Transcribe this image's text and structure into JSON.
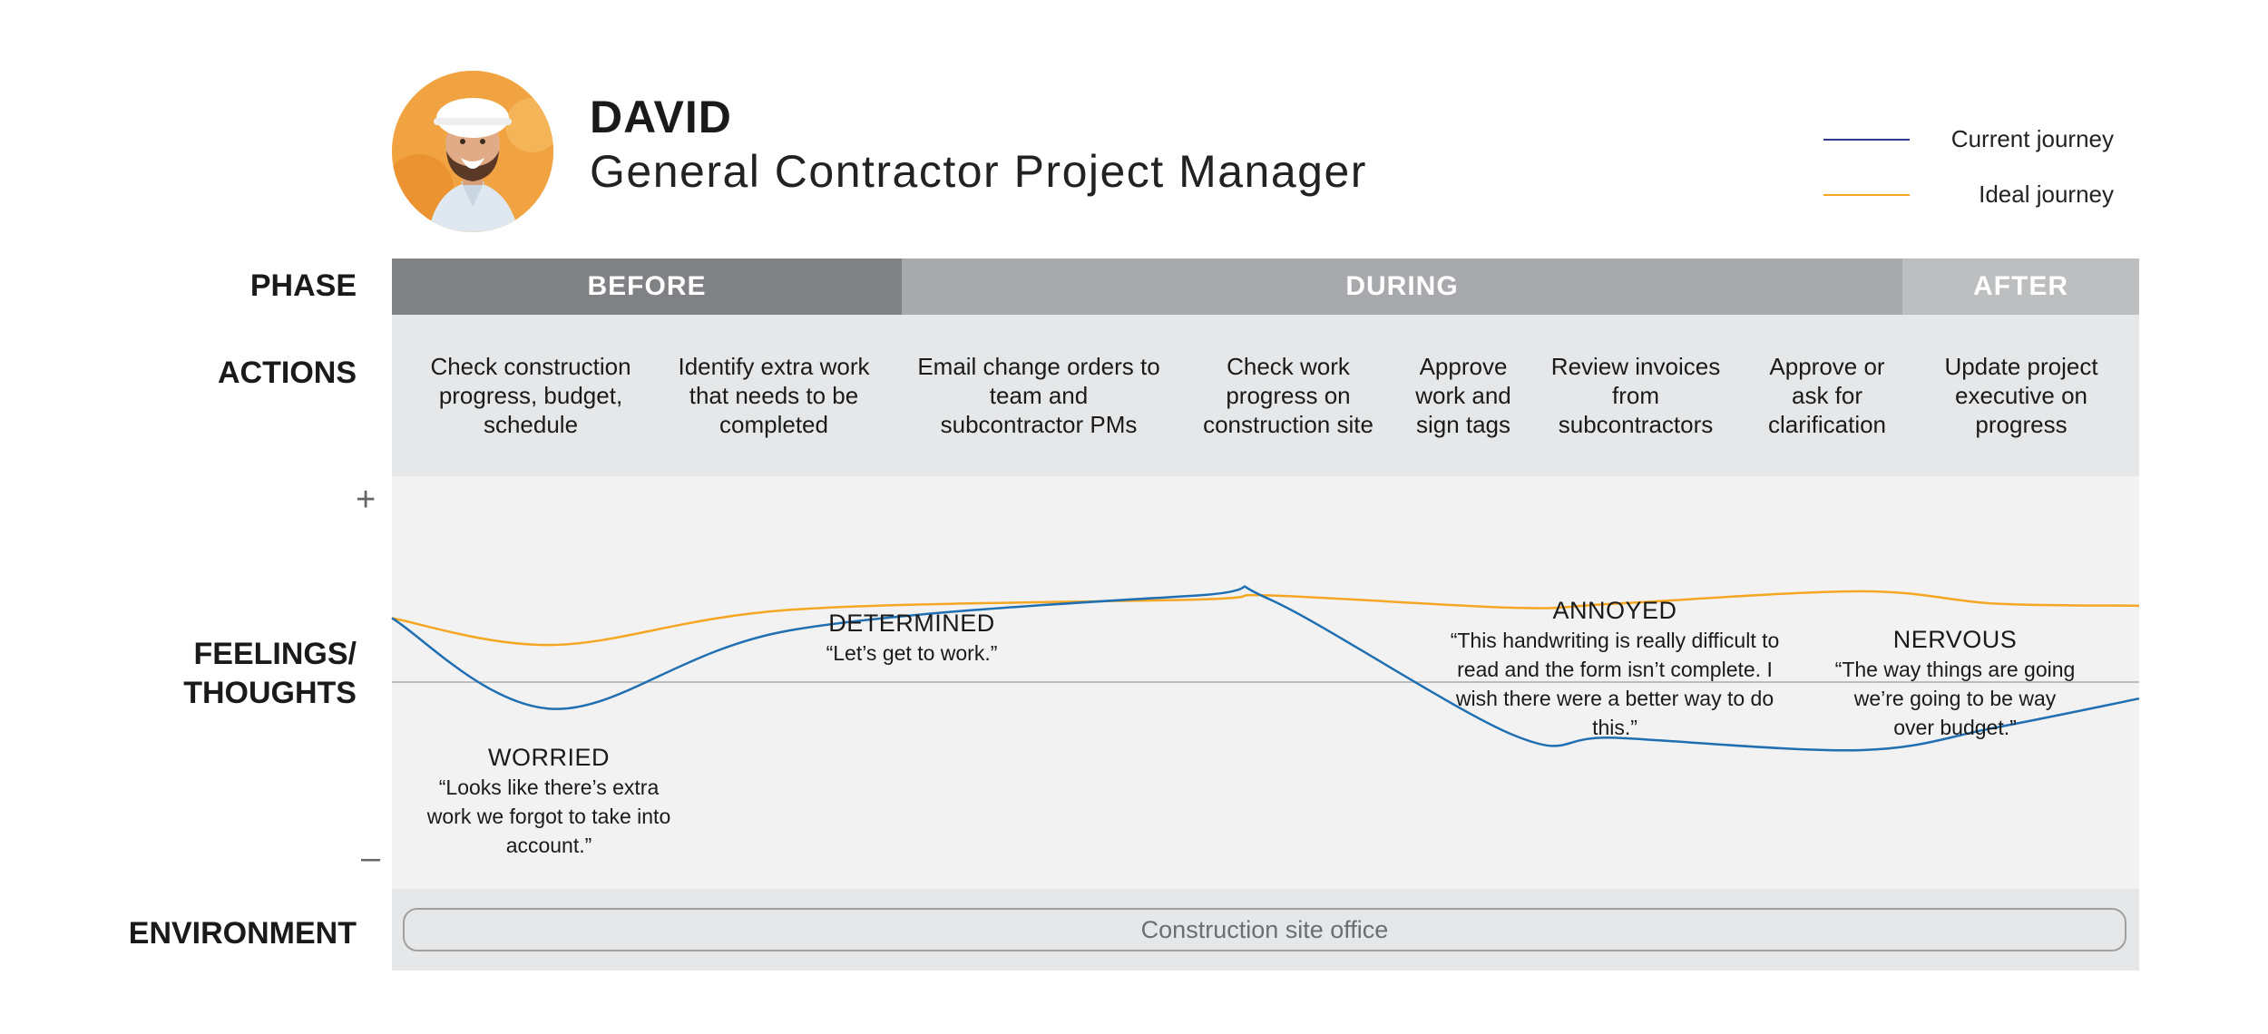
{
  "persona": {
    "name": "DAVID",
    "role": "General Contractor Project Manager",
    "avatar_icon": "construction-worker-photo"
  },
  "legend": [
    {
      "label": "Current journey",
      "color": "#2e3a8c"
    },
    {
      "label": "Ideal journey",
      "color": "#f5a623"
    }
  ],
  "row_labels": {
    "phase": "PHASE",
    "actions": "ACTIONS",
    "feelings_line1": "FEELINGS/",
    "feelings_line2": "THOUGHTS",
    "environment": "ENVIRONMENT"
  },
  "phases": [
    {
      "label": "BEFORE",
      "color": "#808184"
    },
    {
      "label": "DURING",
      "color": "#a7a9ac"
    },
    {
      "label": "AFTER",
      "color": "#bcbec0"
    }
  ],
  "actions": [
    "Check construction progress, budget, schedule",
    "Identify extra work that needs to be completed",
    "Email change orders to team and subcontractor PMs",
    "Check work progress on construction site",
    "Approve work and sign tags",
    "Review invoices from subcontractors",
    "Approve or ask for clarification",
    "Update project executive on progress"
  ],
  "scale": {
    "plus": "+",
    "minus": "–"
  },
  "emotions": [
    {
      "title": "WORRIED",
      "quote": "“Looks like there’s extra work we forgot to take into account.”"
    },
    {
      "title": "DETERMINED",
      "quote": "“Let’s get to work.”"
    },
    {
      "title": "ANNOYED",
      "quote": "“This handwriting is really difficult to read and the form isn’t complete. I wish there were a better way to do this.”"
    },
    {
      "title": "NERVOUS",
      "quote": "“The way things are going we’re going to be way over budget.”"
    }
  ],
  "environment": "Construction site office",
  "chart_data": {
    "type": "line",
    "x": [
      "start",
      "A1",
      "A2",
      "A3",
      "A4",
      "A5",
      "A6",
      "A7",
      "A8",
      "end"
    ],
    "series": [
      {
        "name": "Current journey",
        "color": "#1f6fb2",
        "values": [
          0.31,
          -0.13,
          0.25,
          0.42,
          0.4,
          -0.26,
          -0.27,
          -0.33,
          -0.22,
          -0.08
        ]
      },
      {
        "name": "Ideal journey",
        "color": "#f5a623",
        "values": [
          0.31,
          0.18,
          0.35,
          0.4,
          0.42,
          0.36,
          0.38,
          0.44,
          0.38,
          0.37
        ]
      }
    ],
    "ylim": [
      -1,
      1
    ]
  }
}
